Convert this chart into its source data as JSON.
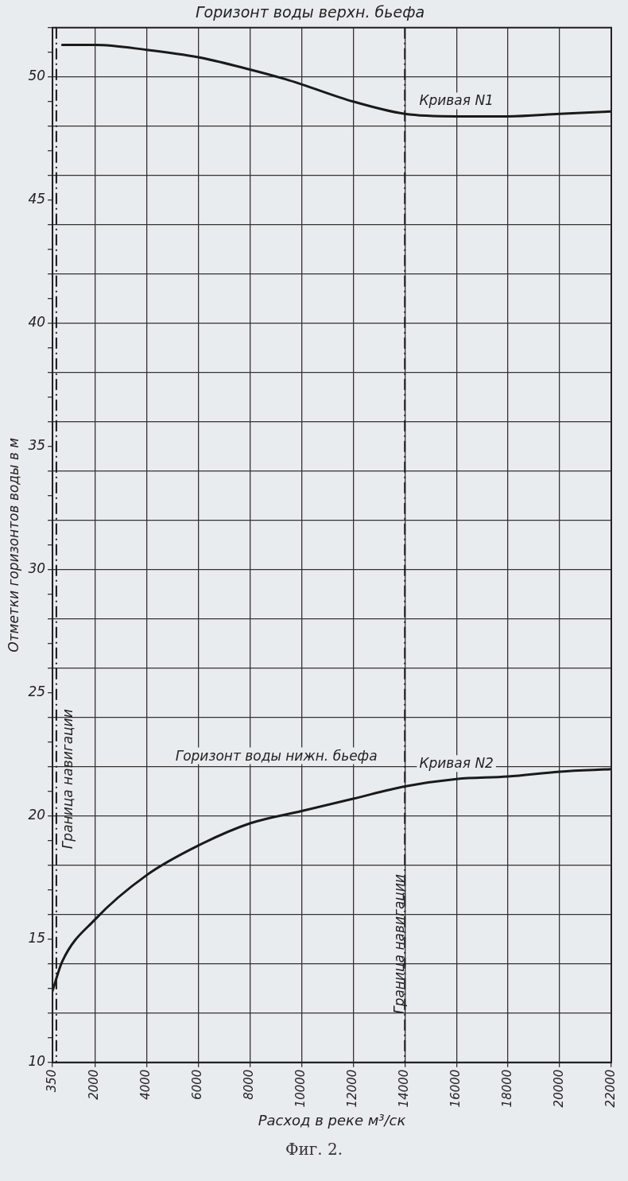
{
  "chart_data": {
    "type": "line",
    "title": "Горизонт воды верхн. бьефа",
    "xlabel": "Расход в реке м³/ск",
    "ylabel": "Отметки горизонтов воды в м",
    "xlim": [
      350,
      22000
    ],
    "xticks": [
      350,
      2000,
      4000,
      6000,
      8000,
      10000,
      12000,
      14000,
      16000,
      18000,
      20000,
      22000
    ],
    "ylim": [
      10,
      52
    ],
    "yticks": [
      10,
      {
        "value": 11,
        "label": null
      },
      {
        "value": 12,
        "label": null
      },
      {
        "value": 13,
        "label": null
      },
      {
        "value": 14,
        "label": null
      },
      15,
      {
        "value": 16,
        "label": null
      },
      {
        "value": 17,
        "label": null
      },
      {
        "value": 18,
        "label": null
      },
      {
        "value": 19,
        "label": null
      },
      20,
      {
        "value": 21,
        "label": null
      },
      {
        "value": 22,
        "label": null
      },
      {
        "value": 23,
        "label": null
      },
      {
        "value": 24,
        "label": null
      },
      25,
      {
        "value": 26,
        "label": null
      },
      {
        "value": 27,
        "label": null
      },
      {
        "value": 28,
        "label": null
      },
      {
        "value": 29,
        "label": null
      },
      30,
      {
        "value": 31,
        "label": null
      },
      {
        "value": 32,
        "label": null
      },
      {
        "value": 33,
        "label": null
      },
      {
        "value": 34,
        "label": null
      },
      35,
      {
        "value": 36,
        "label": null
      },
      {
        "value": 37,
        "label": null
      },
      {
        "value": 38,
        "label": null
      },
      {
        "value": 39,
        "label": null
      },
      40,
      {
        "value": 41,
        "label": null
      },
      {
        "value": 42,
        "label": null
      },
      {
        "value": 43,
        "label": null
      },
      {
        "value": 44,
        "label": null
      },
      45,
      {
        "value": 46,
        "label": null
      },
      {
        "value": 47,
        "label": null
      },
      {
        "value": 48,
        "label": null
      },
      {
        "value": 49,
        "label": null
      },
      50,
      {
        "value": 51,
        "label": null
      },
      {
        "value": 52,
        "label": null
      }
    ],
    "grid": true,
    "legend": false,
    "marker": "none",
    "line_style": "solid",
    "series": [
      {
        "name": "Кривая N1",
        "color": "#1a1a1a",
        "x": [
          730,
          2000,
          4000,
          6000,
          8000,
          9400,
          10000,
          12000,
          14000,
          16000,
          18000,
          20000,
          22000
        ],
        "values": [
          51.3,
          51.3,
          51.1,
          50.8,
          50.3,
          49.9,
          49.7,
          49.0,
          48.5,
          48.4,
          48.4,
          48.5,
          48.6
        ]
      },
      {
        "name": "Кривая N2",
        "color": "#1a1a1a",
        "x": [
          350,
          730,
          2000,
          4000,
          6000,
          8000,
          10000,
          12000,
          14000,
          16000,
          18000,
          20000,
          22000
        ],
        "values": [
          12.9,
          14.1,
          15.8,
          17.6,
          18.8,
          19.7,
          20.2,
          20.7,
          21.2,
          21.5,
          21.6,
          21.8,
          21.9
        ]
      }
    ],
    "ref_lines": [
      {
        "axis": "x",
        "value": 500,
        "label": "Граница навигации",
        "line_style": "dashed",
        "color": "#1a1a1a"
      },
      {
        "axis": "x",
        "value": 14000,
        "label": "Граница навигации",
        "line_style": "dashed",
        "color": "#1a1a1a"
      }
    ],
    "annotations": [
      "Горизонт воды нижн. бьефа",
      "Фиг. 2."
    ]
  }
}
